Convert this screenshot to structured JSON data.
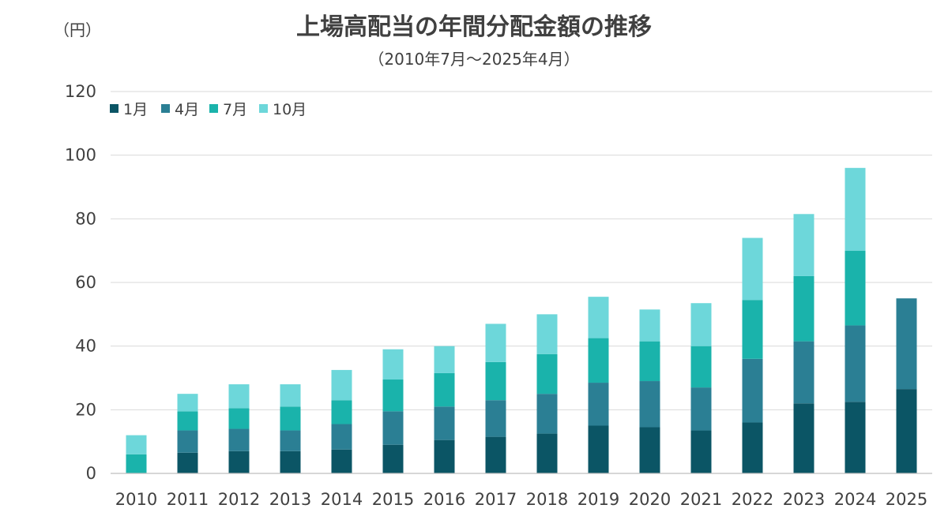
{
  "chart_data": {
    "type": "bar",
    "stacked": true,
    "title": "上場高配当の年間分配金額の推移",
    "subtitle": "（2010年7月～2025年4月）",
    "ylabel": "（円）",
    "xlabel": "",
    "ylim": [
      0,
      120
    ],
    "yticks": [
      0,
      20,
      40,
      60,
      80,
      100,
      120
    ],
    "grid": true,
    "legend_position": "top-left",
    "categories": [
      "2010",
      "2011",
      "2012",
      "2013",
      "2014",
      "2015",
      "2016",
      "2017",
      "2018",
      "2019",
      "2020",
      "2021",
      "2022",
      "2023",
      "2024",
      "2025"
    ],
    "series": [
      {
        "name": "1月",
        "color": "#0b5565",
        "values": [
          0,
          6.5,
          7,
          7,
          7.5,
          9,
          10.5,
          11.5,
          12.5,
          15,
          14.5,
          13.5,
          16,
          22,
          22.5,
          26.5
        ]
      },
      {
        "name": "4月",
        "color": "#2b7f94",
        "values": [
          0,
          7,
          7,
          6.5,
          8,
          10.5,
          10.5,
          11.5,
          12.5,
          13.5,
          14.5,
          13.5,
          20,
          19.5,
          24,
          28.5
        ]
      },
      {
        "name": "7月",
        "color": "#1ab3ab",
        "values": [
          6,
          6,
          6.5,
          7.5,
          7.5,
          10,
          10.5,
          12,
          12.5,
          14,
          12.5,
          13,
          18.5,
          20.5,
          23.5,
          0
        ]
      },
      {
        "name": "10月",
        "color": "#6dd7da",
        "values": [
          6,
          5.5,
          7.5,
          7,
          9.5,
          9.5,
          8.5,
          12,
          12.5,
          13,
          10,
          13.5,
          19.5,
          19.5,
          26,
          0
        ]
      }
    ]
  }
}
